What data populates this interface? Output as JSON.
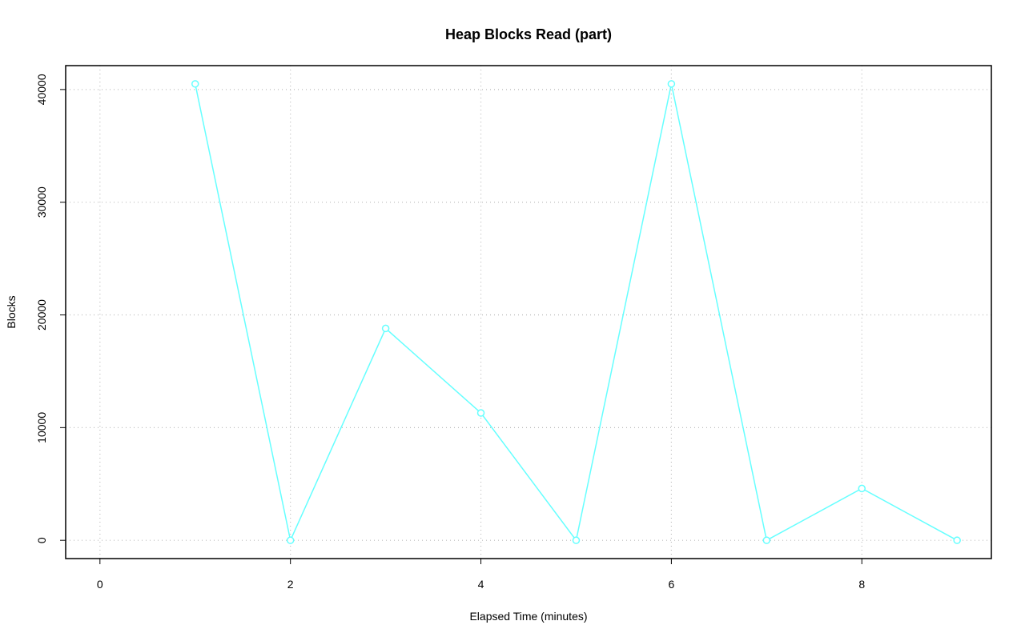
{
  "chart_data": {
    "type": "line",
    "title": "Heap Blocks Read (part)",
    "x_label": "Elapsed Time (minutes)",
    "y_label": "Blocks",
    "x": [
      1,
      2,
      3,
      4,
      5,
      6,
      7,
      8,
      9
    ],
    "series": [
      {
        "name": "Blocks",
        "color": "#66ffff",
        "values": [
          40500,
          0,
          18800,
          11300,
          0,
          40500,
          0,
          4600,
          0
        ]
      }
    ],
    "xlim": [
      -0.36,
      9.36
    ],
    "xticks": [
      0,
      2,
      4,
      6,
      8
    ],
    "ylim": [
      -1620,
      42120
    ],
    "yticks": [
      0,
      10000,
      20000,
      30000,
      40000
    ],
    "grid": true,
    "legend": false
  }
}
